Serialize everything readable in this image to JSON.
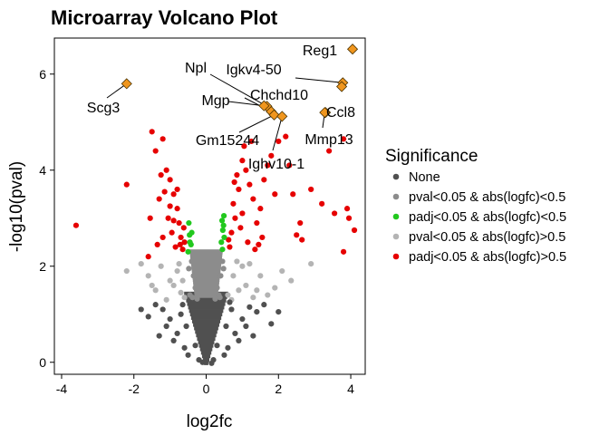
{
  "chart_data": {
    "type": "scatter",
    "title": "Microarray Volcano Plot",
    "xlabel": "log2fc",
    "ylabel": "-log10(pval)",
    "xlim": [
      -4.2,
      4.4
    ],
    "ylim": [
      -0.25,
      6.75
    ],
    "xticks": [
      -4,
      -2,
      0,
      2,
      4
    ],
    "yticks": [
      0,
      2,
      4,
      6
    ],
    "grid": false,
    "legend": {
      "title": "Significance",
      "placement": "right",
      "entries": [
        {
          "label": "None",
          "color": "#505050"
        },
        {
          "label": "pval<0.05 & abs(logfc)<0.5",
          "color": "#8c8c8c"
        },
        {
          "label": "padj<0.05 & abs(logfc)<0.5",
          "color": "#22c81e"
        },
        {
          "label": "pval<0.05 & abs(logfc)>0.5",
          "color": "#b4b4b4"
        },
        {
          "label": "padj<0.05 & abs(logfc)>0.5",
          "color": "#e60000"
        }
      ]
    },
    "highlight_color": "#f0961e",
    "highlighted_genes": [
      {
        "gene": "Reg1",
        "x": 4.05,
        "y": 6.52
      },
      {
        "gene": "Igkv4-50",
        "x": 3.78,
        "y": 5.82
      },
      {
        "gene": "Igkv4-50",
        "x": 3.75,
        "y": 5.74
      },
      {
        "gene": "Scg3",
        "x": -2.2,
        "y": 5.8
      },
      {
        "gene": "Npl",
        "x": 1.68,
        "y": 5.33
      },
      {
        "gene": "Mgp",
        "x": 1.6,
        "y": 5.34
      },
      {
        "gene": "Chchd10",
        "x": 1.8,
        "y": 5.22
      },
      {
        "gene": "Gm15244",
        "x": 1.88,
        "y": 5.15
      },
      {
        "gene": "Ighv10-1",
        "x": 2.1,
        "y": 5.12
      },
      {
        "gene": "Ccl8",
        "x": 3.3,
        "y": 5.2
      },
      {
        "gene": "Mmp13",
        "x": 3.28,
        "y": 5.2
      }
    ],
    "gene_labels": [
      "Reg1",
      "Igkv4-50",
      "Npl",
      "Chchd10",
      "Mgp",
      "Scg3",
      "Ccl8",
      "Gm15244",
      "Mmp13",
      "Ighv10-1"
    ],
    "series": [
      {
        "name": "padj<0.05 & abs(logfc)>0.5",
        "points": [
          [
            -3.6,
            2.85
          ],
          [
            -2.2,
            3.7
          ],
          [
            -1.5,
            4.8
          ],
          [
            -1.2,
            4.65
          ],
          [
            -1.1,
            4.0
          ],
          [
            -1.4,
            4.4
          ],
          [
            -1.0,
            3.8
          ],
          [
            -0.9,
            3.5
          ],
          [
            -1.3,
            3.4
          ],
          [
            -0.8,
            3.2
          ],
          [
            -0.75,
            2.9
          ],
          [
            -1.05,
            3.0
          ],
          [
            -1.2,
            2.6
          ],
          [
            -0.85,
            2.4
          ],
          [
            -0.7,
            2.6
          ],
          [
            -0.95,
            2.7
          ],
          [
            -1.55,
            3.0
          ],
          [
            -1.25,
            3.9
          ],
          [
            -0.65,
            2.35
          ],
          [
            -0.8,
            3.6
          ],
          [
            -0.6,
            2.5
          ],
          [
            -1.0,
            3.25
          ],
          [
            -0.72,
            2.45
          ],
          [
            -1.6,
            2.2
          ],
          [
            -1.35,
            2.45
          ],
          [
            -0.9,
            2.95
          ],
          [
            -1.15,
            3.55
          ],
          [
            -0.62,
            2.8
          ],
          [
            0.65,
            2.4
          ],
          [
            0.7,
            2.7
          ],
          [
            0.8,
            3.0
          ],
          [
            0.75,
            3.3
          ],
          [
            0.9,
            3.6
          ],
          [
            0.85,
            3.9
          ],
          [
            1.0,
            4.2
          ],
          [
            1.1,
            4.0
          ],
          [
            1.2,
            3.7
          ],
          [
            1.3,
            3.4
          ],
          [
            1.0,
            3.1
          ],
          [
            0.95,
            2.8
          ],
          [
            1.15,
            2.5
          ],
          [
            1.4,
            2.9
          ],
          [
            1.5,
            3.2
          ],
          [
            1.6,
            3.8
          ],
          [
            1.7,
            4.1
          ],
          [
            1.8,
            4.3
          ],
          [
            1.9,
            3.5
          ],
          [
            2.0,
            4.6
          ],
          [
            2.2,
            4.7
          ],
          [
            2.3,
            4.1
          ],
          [
            1.55,
            2.6
          ],
          [
            1.35,
            2.35
          ],
          [
            2.6,
            2.9
          ],
          [
            2.65,
            2.55
          ],
          [
            2.4,
            3.5
          ],
          [
            2.9,
            3.6
          ],
          [
            3.2,
            3.3
          ],
          [
            3.55,
            3.1
          ],
          [
            3.4,
            4.4
          ],
          [
            3.8,
            4.65
          ],
          [
            3.9,
            3.2
          ],
          [
            3.95,
            3.0
          ],
          [
            4.1,
            2.75
          ],
          [
            3.8,
            2.3
          ],
          [
            0.62,
            2.55
          ],
          [
            0.78,
            3.75
          ],
          [
            1.05,
            4.5
          ],
          [
            1.25,
            4.6
          ],
          [
            2.5,
            2.65
          ],
          [
            1.45,
            2.45
          ]
        ]
      },
      {
        "name": "pval<0.05 & abs(logfc)>0.5",
        "points": [
          [
            -2.2,
            1.9
          ],
          [
            -1.6,
            1.8
          ],
          [
            -1.4,
            1.5
          ],
          [
            -1.1,
            1.3
          ],
          [
            -0.9,
            1.6
          ],
          [
            -1.25,
            2.0
          ],
          [
            -0.7,
            1.45
          ],
          [
            -0.8,
            1.9
          ],
          [
            -1.0,
            1.7
          ],
          [
            -0.6,
            1.35
          ],
          [
            -1.5,
            1.6
          ],
          [
            -1.8,
            2.05
          ],
          [
            -0.75,
            2.05
          ],
          [
            -0.65,
            1.7
          ],
          [
            0.6,
            1.4
          ],
          [
            0.75,
            1.8
          ],
          [
            0.9,
            1.5
          ],
          [
            1.0,
            2.0
          ],
          [
            1.1,
            1.6
          ],
          [
            1.3,
            1.35
          ],
          [
            1.5,
            1.8
          ],
          [
            1.7,
            1.4
          ],
          [
            1.9,
            1.55
          ],
          [
            2.1,
            1.9
          ],
          [
            2.35,
            1.7
          ],
          [
            0.7,
            1.3
          ],
          [
            1.2,
            2.05
          ],
          [
            2.9,
            2.05
          ],
          [
            0.85,
            2.1
          ],
          [
            1.4,
            1.5
          ]
        ]
      },
      {
        "name": "padj<0.05 & abs(logfc)<0.5",
        "points": [
          [
            -0.5,
            2.3
          ],
          [
            -0.45,
            2.5
          ],
          [
            -0.4,
            2.7
          ],
          [
            -0.48,
            2.9
          ],
          [
            -0.42,
            2.45
          ],
          [
            -0.46,
            2.65
          ],
          [
            0.45,
            2.35
          ],
          [
            0.5,
            2.6
          ],
          [
            0.48,
            2.85
          ],
          [
            0.42,
            2.5
          ],
          [
            0.46,
            2.75
          ],
          [
            0.49,
            3.05
          ],
          [
            0.44,
            2.95
          ]
        ]
      },
      {
        "name": "pval<0.05 & abs(logfc)<0.5",
        "points": [
          [
            -0.45,
            1.4
          ],
          [
            -0.35,
            1.8
          ],
          [
            -0.4,
            2.1
          ],
          [
            -0.3,
            1.55
          ],
          [
            -0.48,
            1.95
          ],
          [
            -0.38,
            1.35
          ],
          [
            0.35,
            1.4
          ],
          [
            0.4,
            1.8
          ],
          [
            0.45,
            2.1
          ],
          [
            0.3,
            1.55
          ],
          [
            0.48,
            1.95
          ],
          [
            0.38,
            1.35
          ],
          [
            -0.25,
            1.32
          ],
          [
            0.25,
            1.32
          ]
        ]
      },
      {
        "name": "None",
        "points": [
          [
            -0.8,
            0.6
          ],
          [
            -1.0,
            0.9
          ],
          [
            -1.2,
            1.1
          ],
          [
            -0.6,
            0.3
          ],
          [
            -1.4,
            1.2
          ],
          [
            -0.9,
            0.45
          ],
          [
            -1.1,
            0.75
          ],
          [
            -0.5,
            0.15
          ],
          [
            -1.3,
            0.55
          ],
          [
            0.8,
            0.6
          ],
          [
            1.0,
            0.9
          ],
          [
            1.2,
            1.15
          ],
          [
            0.6,
            0.3
          ],
          [
            1.4,
            1.05
          ],
          [
            0.9,
            0.45
          ],
          [
            1.1,
            0.75
          ],
          [
            0.5,
            0.15
          ],
          [
            1.3,
            0.55
          ],
          [
            1.6,
            1.2
          ],
          [
            -1.6,
            0.95
          ],
          [
            -0.7,
            1.0
          ],
          [
            0.7,
            1.1
          ],
          [
            0.2,
            0.05
          ],
          [
            -0.2,
            0.05
          ],
          [
            0.0,
            0.02
          ],
          [
            0.15,
            -0.02
          ],
          [
            -0.1,
            0.0
          ],
          [
            2.0,
            1.05
          ],
          [
            -1.8,
            1.1
          ],
          [
            1.8,
            0.8
          ],
          [
            -0.3,
            0.35
          ],
          [
            0.3,
            0.35
          ],
          [
            0.55,
            0.75
          ],
          [
            -0.55,
            0.75
          ],
          [
            0.65,
            1.25
          ],
          [
            -0.65,
            1.2
          ]
        ]
      }
    ]
  }
}
